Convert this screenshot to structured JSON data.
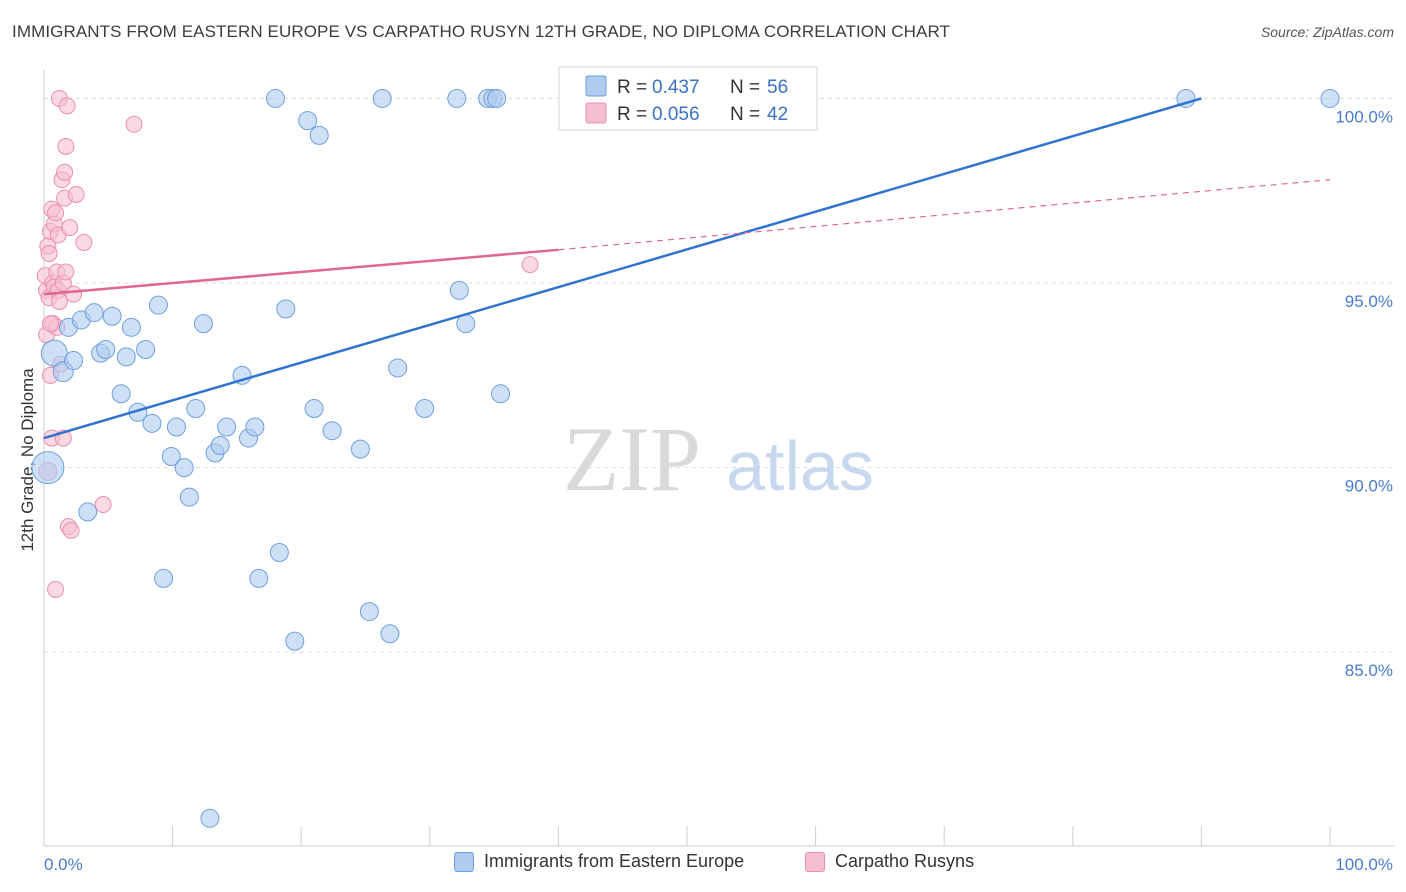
{
  "title": "IMMIGRANTS FROM EASTERN EUROPE VS CARPATHO RUSYN 12TH GRADE, NO DIPLOMA CORRELATION CHART",
  "source": "Source: ZipAtlas.com",
  "watermark": {
    "zip": "ZIP",
    "atlas": "atlas"
  },
  "colors": {
    "blue_fill": "#aecbf0",
    "blue_stroke": "#6f9fdc",
    "blue_line": "#3174d0",
    "pink_fill": "#f6bfd0",
    "pink_stroke": "#ea8fae",
    "pink_line": "#e0688f",
    "tick_text": "#4a7bd0",
    "grid": "#dcdcdc"
  },
  "legend": {
    "series": [
      {
        "r_label": "R =",
        "r_value": "0.437",
        "n_label": "N =",
        "n_value": "56"
      },
      {
        "r_label": "R =",
        "r_value": "0.056",
        "n_label": "N =",
        "n_value": "42"
      }
    ]
  },
  "bottom_legend": {
    "blue": "Immigrants from Eastern Europe",
    "pink": "Carpatho Rusyns"
  },
  "chart_data": {
    "type": "scatter",
    "xlabel": "",
    "ylabel": "12th Grade, No Diploma",
    "xlim": [
      0,
      100
    ],
    "ylim": [
      80.4,
      100.5
    ],
    "x_tick_labels": [
      {
        "value": 0,
        "label": "0.0%"
      },
      {
        "value": 100,
        "label": "100.0%"
      }
    ],
    "y_ticks": [
      {
        "value": 85,
        "label": "85.0%"
      },
      {
        "value": 90,
        "label": "90.0%"
      },
      {
        "value": 95,
        "label": "95.0%"
      },
      {
        "value": 100,
        "label": "100.0%"
      }
    ],
    "series": [
      {
        "name": "Immigrants from Eastern Europe",
        "color": "blue",
        "trend": {
          "x0": 0,
          "y0": 90.8,
          "x1": 90,
          "y1": 100.0
        },
        "points": [
          {
            "x": 0.3,
            "y": 90.0,
            "s": 16
          },
          {
            "x": 0.8,
            "y": 93.1,
            "s": 13
          },
          {
            "x": 1.5,
            "y": 92.6,
            "s": 10
          },
          {
            "x": 1.9,
            "y": 93.8,
            "s": 9
          },
          {
            "x": 2.3,
            "y": 92.9,
            "s": 9
          },
          {
            "x": 2.9,
            "y": 94.0,
            "s": 9
          },
          {
            "x": 3.4,
            "y": 88.8,
            "s": 9
          },
          {
            "x": 3.9,
            "y": 94.2,
            "s": 9
          },
          {
            "x": 4.4,
            "y": 93.1,
            "s": 9
          },
          {
            "x": 4.8,
            "y": 93.2,
            "s": 9
          },
          {
            "x": 5.3,
            "y": 94.1,
            "s": 9
          },
          {
            "x": 6.0,
            "y": 92.0,
            "s": 9
          },
          {
            "x": 6.4,
            "y": 93.0,
            "s": 9
          },
          {
            "x": 6.8,
            "y": 93.8,
            "s": 9
          },
          {
            "x": 7.3,
            "y": 91.5,
            "s": 9
          },
          {
            "x": 7.9,
            "y": 93.2,
            "s": 9
          },
          {
            "x": 8.4,
            "y": 91.2,
            "s": 9
          },
          {
            "x": 8.9,
            "y": 94.4,
            "s": 9
          },
          {
            "x": 9.3,
            "y": 87.0,
            "s": 9
          },
          {
            "x": 9.9,
            "y": 90.3,
            "s": 9
          },
          {
            "x": 10.3,
            "y": 91.1,
            "s": 9
          },
          {
            "x": 10.9,
            "y": 90.0,
            "s": 9
          },
          {
            "x": 11.3,
            "y": 89.2,
            "s": 9
          },
          {
            "x": 11.8,
            "y": 91.6,
            "s": 9
          },
          {
            "x": 12.4,
            "y": 93.9,
            "s": 9
          },
          {
            "x": 12.9,
            "y": 80.5,
            "s": 9
          },
          {
            "x": 13.3,
            "y": 90.4,
            "s": 9
          },
          {
            "x": 13.7,
            "y": 90.6,
            "s": 9
          },
          {
            "x": 14.2,
            "y": 91.1,
            "s": 9
          },
          {
            "x": 15.4,
            "y": 92.5,
            "s": 9
          },
          {
            "x": 15.9,
            "y": 90.8,
            "s": 9
          },
          {
            "x": 16.4,
            "y": 91.1,
            "s": 9
          },
          {
            "x": 16.7,
            "y": 87.0,
            "s": 9
          },
          {
            "x": 18.0,
            "y": 100.0,
            "s": 9
          },
          {
            "x": 18.3,
            "y": 87.7,
            "s": 9
          },
          {
            "x": 18.8,
            "y": 94.3,
            "s": 9
          },
          {
            "x": 19.5,
            "y": 85.3,
            "s": 9
          },
          {
            "x": 20.5,
            "y": 99.4,
            "s": 9
          },
          {
            "x": 21.0,
            "y": 91.6,
            "s": 9
          },
          {
            "x": 21.4,
            "y": 99.0,
            "s": 9
          },
          {
            "x": 22.4,
            "y": 91.0,
            "s": 9
          },
          {
            "x": 24.6,
            "y": 90.5,
            "s": 9
          },
          {
            "x": 25.3,
            "y": 86.1,
            "s": 9
          },
          {
            "x": 26.3,
            "y": 100.0,
            "s": 9
          },
          {
            "x": 26.9,
            "y": 85.5,
            "s": 9
          },
          {
            "x": 27.5,
            "y": 92.7,
            "s": 9
          },
          {
            "x": 29.6,
            "y": 91.6,
            "s": 9
          },
          {
            "x": 32.1,
            "y": 100.0,
            "s": 9
          },
          {
            "x": 32.3,
            "y": 94.8,
            "s": 9
          },
          {
            "x": 32.8,
            "y": 93.9,
            "s": 9
          },
          {
            "x": 34.5,
            "y": 100.0,
            "s": 9
          },
          {
            "x": 34.9,
            "y": 100.0,
            "s": 9
          },
          {
            "x": 35.2,
            "y": 100.0,
            "s": 9
          },
          {
            "x": 35.5,
            "y": 92.0,
            "s": 9
          },
          {
            "x": 88.8,
            "y": 100.0,
            "s": 9
          },
          {
            "x": 100.0,
            "y": 100.0,
            "s": 9
          }
        ]
      },
      {
        "name": "Carpatho Rusyns",
        "color": "pink",
        "trend": {
          "x0": 0,
          "y0": 94.7,
          "x1": 40,
          "y1": 95.9,
          "dash_to_x": 100,
          "dash_to_y": 97.8
        },
        "points": [
          {
            "x": 0.1,
            "y": 95.2,
            "s": 8
          },
          {
            "x": 0.2,
            "y": 94.8,
            "s": 8
          },
          {
            "x": 0.2,
            "y": 93.6,
            "s": 8
          },
          {
            "x": 0.3,
            "y": 96.0,
            "s": 8
          },
          {
            "x": 0.3,
            "y": 89.9,
            "s": 9
          },
          {
            "x": 0.4,
            "y": 95.8,
            "s": 8
          },
          {
            "x": 0.4,
            "y": 94.6,
            "s": 8
          },
          {
            "x": 0.5,
            "y": 96.4,
            "s": 8
          },
          {
            "x": 0.5,
            "y": 92.5,
            "s": 8
          },
          {
            "x": 0.6,
            "y": 97.0,
            "s": 8
          },
          {
            "x": 0.6,
            "y": 90.8,
            "s": 8
          },
          {
            "x": 0.7,
            "y": 95.0,
            "s": 8
          },
          {
            "x": 0.7,
            "y": 93.9,
            "s": 8
          },
          {
            "x": 0.8,
            "y": 96.6,
            "s": 8
          },
          {
            "x": 0.8,
            "y": 94.9,
            "s": 8
          },
          {
            "x": 0.9,
            "y": 96.9,
            "s": 8
          },
          {
            "x": 0.9,
            "y": 86.7,
            "s": 8
          },
          {
            "x": 1.0,
            "y": 95.3,
            "s": 8
          },
          {
            "x": 1.0,
            "y": 93.8,
            "s": 8
          },
          {
            "x": 1.1,
            "y": 96.3,
            "s": 8
          },
          {
            "x": 1.1,
            "y": 94.8,
            "s": 8
          },
          {
            "x": 1.2,
            "y": 100.0,
            "s": 8
          },
          {
            "x": 1.2,
            "y": 94.5,
            "s": 8
          },
          {
            "x": 1.3,
            "y": 92.8,
            "s": 8
          },
          {
            "x": 1.4,
            "y": 97.8,
            "s": 8
          },
          {
            "x": 1.5,
            "y": 95.0,
            "s": 8
          },
          {
            "x": 1.5,
            "y": 90.8,
            "s": 8
          },
          {
            "x": 1.6,
            "y": 98.0,
            "s": 8
          },
          {
            "x": 1.6,
            "y": 97.3,
            "s": 8
          },
          {
            "x": 1.7,
            "y": 98.7,
            "s": 8
          },
          {
            "x": 1.7,
            "y": 95.3,
            "s": 8
          },
          {
            "x": 1.8,
            "y": 99.8,
            "s": 8
          },
          {
            "x": 1.9,
            "y": 88.4,
            "s": 8
          },
          {
            "x": 2.0,
            "y": 96.5,
            "s": 8
          },
          {
            "x": 2.1,
            "y": 88.3,
            "s": 8
          },
          {
            "x": 2.3,
            "y": 94.7,
            "s": 8
          },
          {
            "x": 2.5,
            "y": 97.4,
            "s": 8
          },
          {
            "x": 3.1,
            "y": 96.1,
            "s": 8
          },
          {
            "x": 4.6,
            "y": 89.0,
            "s": 8
          },
          {
            "x": 7.0,
            "y": 99.3,
            "s": 8
          },
          {
            "x": 37.8,
            "y": 95.5,
            "s": 8
          },
          {
            "x": 0.5,
            "y": 93.9,
            "s": 8
          }
        ]
      }
    ]
  }
}
